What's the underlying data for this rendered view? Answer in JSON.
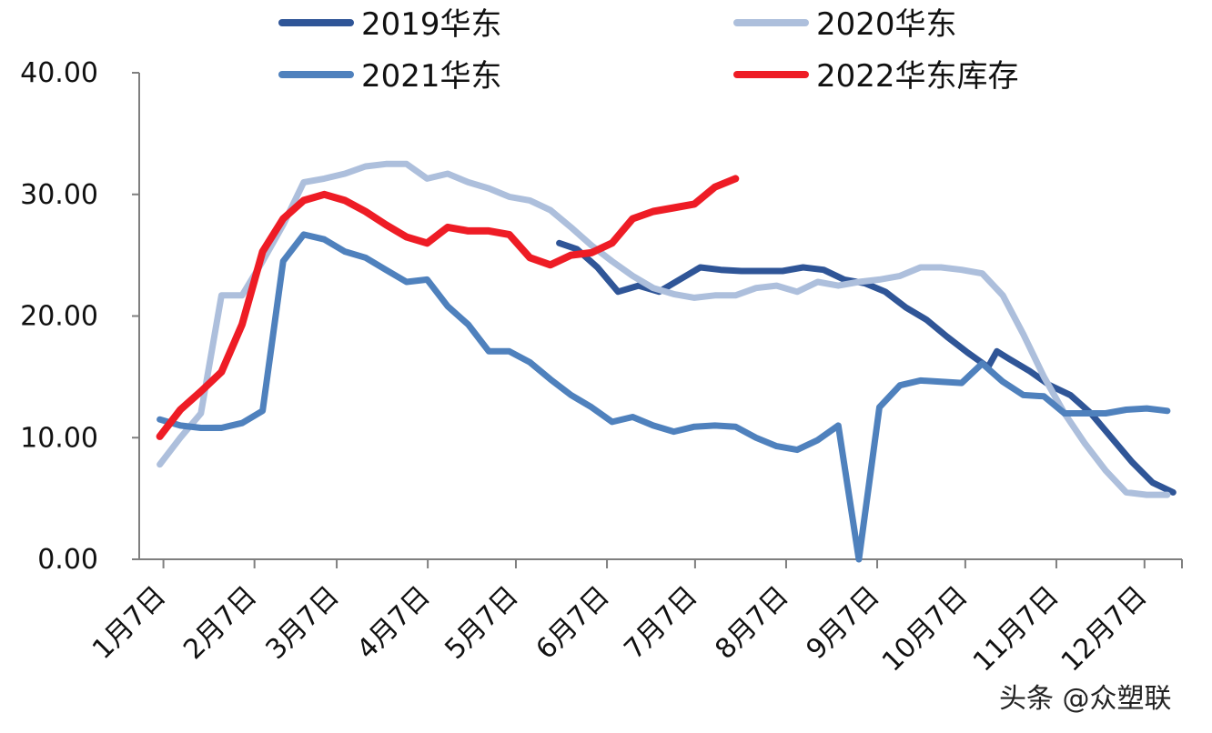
{
  "chart_data": {
    "type": "line",
    "ylim": [
      0,
      40
    ],
    "y_ticks": [
      "0.00",
      "10.00",
      "20.00",
      "30.00",
      "40.00"
    ],
    "x_ticks": [
      "1月7日",
      "2月7日",
      "3月7日",
      "4月7日",
      "5月7日",
      "6月7日",
      "7月7日",
      "8月7日",
      "9月7日",
      "10月7日",
      "11月7日",
      "12月7日"
    ],
    "x_tick_days": [
      7,
      38,
      66,
      97,
      127,
      158,
      188,
      219,
      250,
      280,
      311,
      341
    ],
    "xlim": [
      0,
      355
    ],
    "grid": false,
    "legend_position": "top",
    "series": [
      {
        "name": "2019华东",
        "color": "#2f5597",
        "width": 7,
        "points": [
          [
            143,
            26
          ],
          [
            149,
            25.5
          ],
          [
            156,
            24
          ],
          [
            163,
            22
          ],
          [
            170,
            22.5
          ],
          [
            177,
            22
          ],
          [
            184,
            23
          ],
          [
            191,
            24
          ],
          [
            198,
            23.8
          ],
          [
            205,
            23.7
          ],
          [
            212,
            23.7
          ],
          [
            219,
            23.7
          ],
          [
            226,
            24
          ],
          [
            233,
            23.8
          ],
          [
            240,
            23
          ],
          [
            247,
            22.7
          ],
          [
            254,
            22
          ],
          [
            261,
            20.7
          ],
          [
            268,
            19.7
          ],
          [
            275,
            18.3
          ],
          [
            282,
            17
          ],
          [
            289,
            15.8
          ],
          [
            292,
            17.1
          ],
          [
            296,
            16.5
          ],
          [
            303,
            15.5
          ],
          [
            310,
            14.3
          ],
          [
            317,
            13.5
          ],
          [
            324,
            12
          ],
          [
            331,
            10
          ],
          [
            338,
            8
          ],
          [
            345,
            6.3
          ],
          [
            352,
            5.5
          ]
        ]
      },
      {
        "name": "2020华东",
        "color": "#adbfdc",
        "width": 7,
        "points": [
          [
            7,
            7.8
          ],
          [
            14,
            10
          ],
          [
            21,
            12
          ],
          [
            28,
            21.7
          ],
          [
            35,
            21.7
          ],
          [
            42,
            24.5
          ],
          [
            49,
            27.5
          ],
          [
            56,
            31
          ],
          [
            63,
            31.3
          ],
          [
            70,
            31.7
          ],
          [
            77,
            32.3
          ],
          [
            84,
            32.5
          ],
          [
            91,
            32.5
          ],
          [
            98,
            31.3
          ],
          [
            105,
            31.7
          ],
          [
            112,
            31
          ],
          [
            119,
            30.5
          ],
          [
            126,
            29.8
          ],
          [
            133,
            29.5
          ],
          [
            140,
            28.7
          ],
          [
            147,
            27.3
          ],
          [
            154,
            25.8
          ],
          [
            161,
            24.5
          ],
          [
            168,
            23.3
          ],
          [
            175,
            22.3
          ],
          [
            182,
            21.8
          ],
          [
            189,
            21.5
          ],
          [
            196,
            21.7
          ],
          [
            203,
            21.7
          ],
          [
            210,
            22.3
          ],
          [
            217,
            22.5
          ],
          [
            224,
            22
          ],
          [
            231,
            22.8
          ],
          [
            238,
            22.5
          ],
          [
            245,
            22.8
          ],
          [
            252,
            23
          ],
          [
            259,
            23.3
          ],
          [
            266,
            24
          ],
          [
            273,
            24
          ],
          [
            280,
            23.8
          ],
          [
            287,
            23.5
          ],
          [
            294,
            21.7
          ],
          [
            301,
            18.5
          ],
          [
            308,
            15
          ],
          [
            315,
            12
          ],
          [
            322,
            9.5
          ],
          [
            329,
            7.3
          ],
          [
            336,
            5.5
          ],
          [
            343,
            5.3
          ],
          [
            350,
            5.3
          ]
        ]
      },
      {
        "name": "2021华东",
        "color": "#4f81bd",
        "width": 7,
        "points": [
          [
            7,
            11.5
          ],
          [
            14,
            11
          ],
          [
            21,
            10.8
          ],
          [
            28,
            10.8
          ],
          [
            35,
            11.2
          ],
          [
            42,
            12.2
          ],
          [
            49,
            24.5
          ],
          [
            56,
            26.7
          ],
          [
            63,
            26.3
          ],
          [
            70,
            25.3
          ],
          [
            77,
            24.8
          ],
          [
            84,
            23.8
          ],
          [
            91,
            22.8
          ],
          [
            98,
            23
          ],
          [
            105,
            20.8
          ],
          [
            112,
            19.3
          ],
          [
            119,
            17.1
          ],
          [
            126,
            17.1
          ],
          [
            133,
            16.2
          ],
          [
            140,
            14.8
          ],
          [
            147,
            13.5
          ],
          [
            154,
            12.5
          ],
          [
            161,
            11.3
          ],
          [
            168,
            11.7
          ],
          [
            175,
            11
          ],
          [
            182,
            10.5
          ],
          [
            189,
            10.9
          ],
          [
            196,
            11
          ],
          [
            203,
            10.9
          ],
          [
            210,
            10
          ],
          [
            217,
            9.3
          ],
          [
            224,
            9
          ],
          [
            231,
            9.8
          ],
          [
            238,
            11
          ],
          [
            245,
            0
          ],
          [
            252,
            12.5
          ],
          [
            259,
            14.3
          ],
          [
            266,
            14.7
          ],
          [
            273,
            14.6
          ],
          [
            280,
            14.5
          ],
          [
            287,
            16.1
          ],
          [
            294,
            14.6
          ],
          [
            301,
            13.5
          ],
          [
            308,
            13.4
          ],
          [
            315,
            12
          ],
          [
            322,
            12
          ],
          [
            329,
            12
          ],
          [
            336,
            12.3
          ],
          [
            343,
            12.4
          ],
          [
            350,
            12.2
          ]
        ]
      },
      {
        "name": "2022华东库存",
        "color": "#ee1c25",
        "width": 8,
        "points": [
          [
            7,
            10.1
          ],
          [
            14,
            12.3
          ],
          [
            21,
            13.8
          ],
          [
            28,
            15.4
          ],
          [
            35,
            19.3
          ],
          [
            42,
            25.3
          ],
          [
            49,
            28
          ],
          [
            56,
            29.5
          ],
          [
            63,
            30
          ],
          [
            70,
            29.5
          ],
          [
            77,
            28.6
          ],
          [
            84,
            27.5
          ],
          [
            91,
            26.5
          ],
          [
            98,
            26
          ],
          [
            105,
            27.3
          ],
          [
            112,
            27
          ],
          [
            119,
            27
          ],
          [
            126,
            26.7
          ],
          [
            133,
            24.8
          ],
          [
            140,
            24.2
          ],
          [
            147,
            25
          ],
          [
            154,
            25.2
          ],
          [
            161,
            26
          ],
          [
            168,
            28
          ],
          [
            175,
            28.6
          ],
          [
            182,
            28.9
          ],
          [
            189,
            29.2
          ],
          [
            196,
            30.6
          ],
          [
            203,
            31.3
          ]
        ]
      }
    ]
  },
  "watermark": "头条 @众塑联"
}
